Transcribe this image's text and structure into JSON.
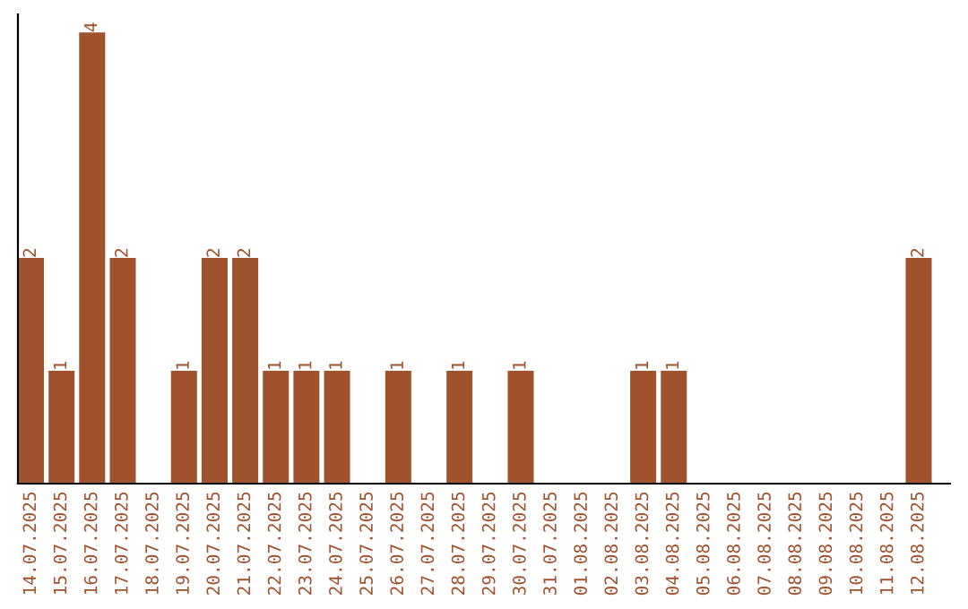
{
  "chart_data": {
    "type": "bar",
    "categories": [
      "14.07.2025",
      "15.07.2025",
      "16.07.2025",
      "17.07.2025",
      "18.07.2025",
      "19.07.2025",
      "20.07.2025",
      "21.07.2025",
      "22.07.2025",
      "23.07.2025",
      "24.07.2025",
      "25.07.2025",
      "26.07.2025",
      "27.07.2025",
      "28.07.2025",
      "29.07.2025",
      "30.07.2025",
      "31.07.2025",
      "01.08.2025",
      "02.08.2025",
      "03.08.2025",
      "04.08.2025",
      "05.08.2025",
      "06.08.2025",
      "07.08.2025",
      "08.08.2025",
      "09.08.2025",
      "10.08.2025",
      "11.08.2025",
      "12.08.2025"
    ],
    "values": [
      2,
      1,
      4,
      2,
      0,
      1,
      2,
      2,
      1,
      1,
      1,
      0,
      1,
      0,
      1,
      0,
      1,
      0,
      0,
      0,
      1,
      1,
      0,
      0,
      0,
      0,
      0,
      0,
      0,
      2
    ],
    "value_labels": [
      "2",
      "1",
      "4",
      "2",
      null,
      "1",
      "2",
      "2",
      "1",
      "1",
      "1",
      null,
      "1",
      null,
      "1",
      null,
      "1",
      null,
      null,
      null,
      "1",
      "1",
      null,
      null,
      null,
      null,
      null,
      null,
      null,
      "2"
    ],
    "color": "#a0522d",
    "grid": false,
    "legend": false
  }
}
